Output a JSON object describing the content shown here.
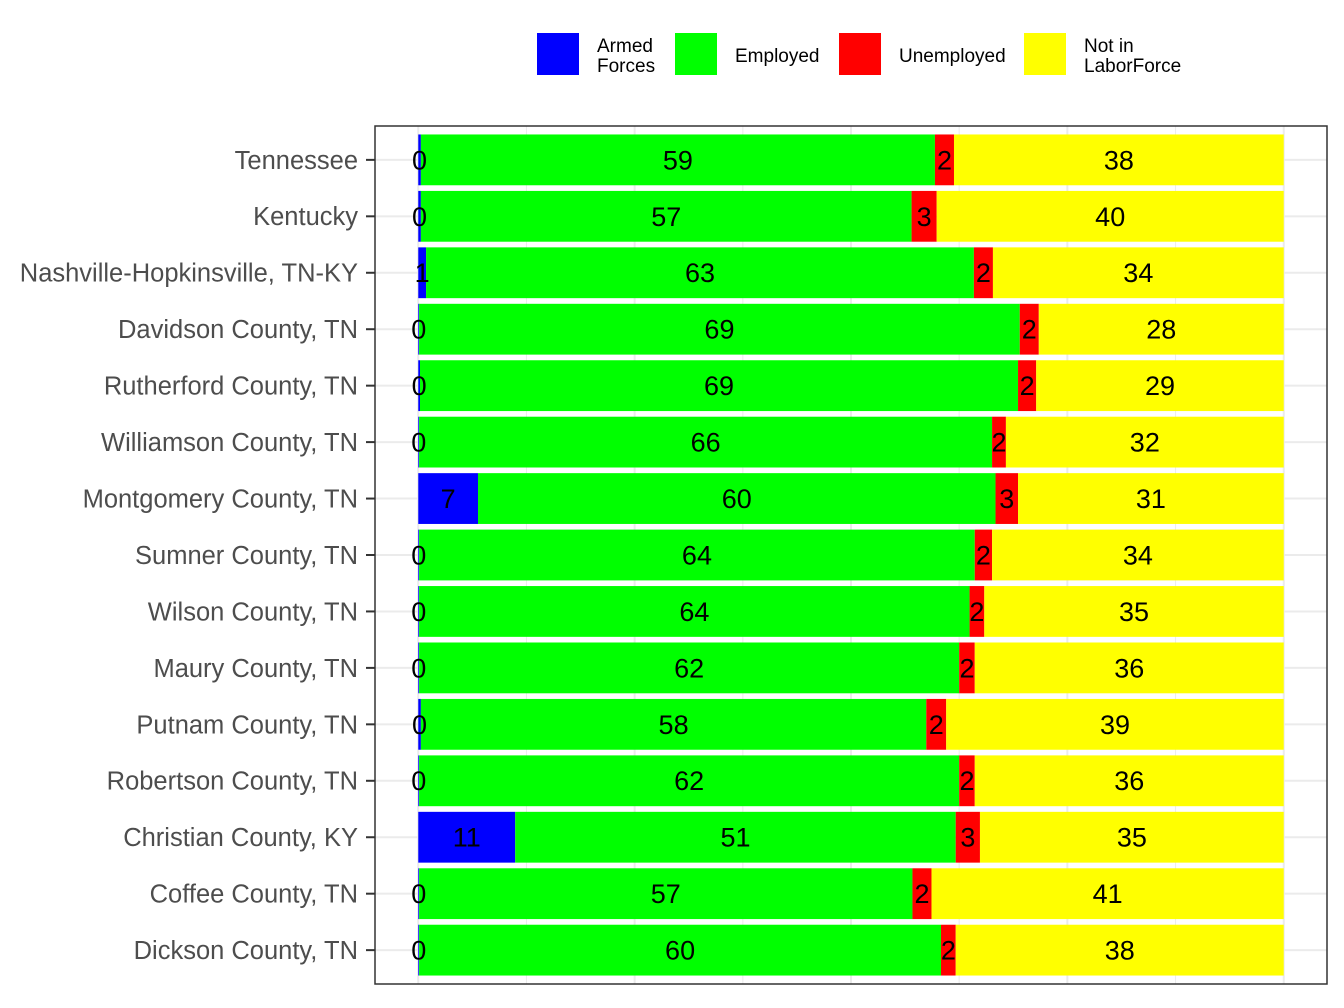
{
  "chart_data": {
    "type": "bar",
    "orientation": "horizontal",
    "stacked": true,
    "title": "",
    "xlabel": "",
    "ylabel": "",
    "xlim": [
      0,
      100
    ],
    "grid": true,
    "legend_position": "top",
    "categories": [
      "Tennessee",
      "Kentucky",
      "Nashville-Hopkinsville, TN-KY",
      "Davidson County, TN",
      "Rutherford County, TN",
      "Williamson County, TN",
      "Montgomery County, TN",
      "Sumner County, TN",
      "Wilson County, TN",
      "Maury County, TN",
      "Putnam County, TN",
      "Robertson County, TN",
      "Christian County, KY",
      "Coffee County, TN",
      "Dickson County, TN"
    ],
    "series": [
      {
        "name": "Armed\nForces",
        "color": "#0000FF",
        "values": [
          0.3,
          0.3,
          0.9,
          0.1,
          0.2,
          0.1,
          6.9,
          0.1,
          0.1,
          0.1,
          0.3,
          0.1,
          11.2,
          0.1,
          0.1
        ],
        "labels": [
          "0",
          "0",
          "1",
          "0",
          "0",
          "0",
          "7",
          "0",
          "0",
          "0",
          "0",
          "0",
          "11",
          "0",
          "0"
        ]
      },
      {
        "name": "Employed",
        "color": "#00FF00",
        "values": [
          59.4,
          56.7,
          63.3,
          69.4,
          69.1,
          66.2,
          59.8,
          64.2,
          63.6,
          62.4,
          58.4,
          62.4,
          50.9,
          57.0,
          60.3
        ],
        "labels": [
          "59",
          "57",
          "63",
          "69",
          "69",
          "66",
          "60",
          "64",
          "64",
          "62",
          "58",
          "62",
          "51",
          "57",
          "60"
        ]
      },
      {
        "name": "Unemployed",
        "color": "#FF0000",
        "values": [
          2.2,
          2.9,
          2.2,
          2.2,
          2.1,
          1.6,
          2.6,
          2.0,
          1.7,
          1.8,
          2.3,
          1.8,
          2.8,
          2.2,
          1.7
        ],
        "labels": [
          "2",
          "3",
          "2",
          "2",
          "2",
          "2",
          "3",
          "2",
          "2",
          "2",
          "2",
          "2",
          "3",
          "2",
          "2"
        ]
      },
      {
        "name": "Not in\nLaborForce",
        "color": "#FFFF00",
        "values": [
          38.1,
          40.1,
          33.6,
          28.3,
          28.6,
          32.1,
          30.7,
          33.7,
          34.6,
          35.7,
          39.0,
          35.7,
          35.1,
          40.7,
          37.9
        ],
        "labels": [
          "38",
          "40",
          "34",
          "28",
          "29",
          "32",
          "31",
          "34",
          "35",
          "36",
          "39",
          "36",
          "35",
          "41",
          "38"
        ]
      }
    ]
  }
}
